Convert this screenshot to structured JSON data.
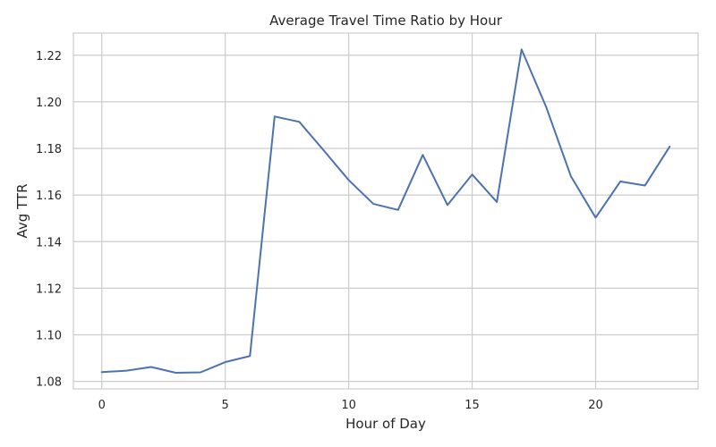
{
  "chart_data": {
    "type": "line",
    "title": "Average Travel Time Ratio by Hour",
    "xlabel": "Hour of Day",
    "ylabel": "Avg TTR",
    "xlim": [
      -1.15,
      24.15
    ],
    "ylim": [
      1.0768,
      1.2295
    ],
    "xticks": [
      0,
      5,
      10,
      15,
      20
    ],
    "yticks": [
      1.08,
      1.1,
      1.12,
      1.14,
      1.16,
      1.18,
      1.2,
      1.22
    ],
    "ytick_labels": [
      "1.08",
      "1.10",
      "1.12",
      "1.14",
      "1.16",
      "1.18",
      "1.20",
      "1.22"
    ],
    "grid": true,
    "line_color": "#4c72b0",
    "series": [
      {
        "x": [
          0,
          1,
          2,
          3,
          4,
          5,
          6,
          7,
          8,
          9,
          10,
          11,
          12,
          13,
          14,
          15,
          16,
          17,
          18,
          19,
          20,
          21,
          22,
          23
        ],
        "values": [
          1.084,
          1.0846,
          1.0862,
          1.0837,
          1.0839,
          1.0883,
          1.0909,
          1.1937,
          1.1914,
          1.179,
          1.1664,
          1.1562,
          1.1536,
          1.1772,
          1.1557,
          1.1688,
          1.157,
          1.2225,
          1.1977,
          1.168,
          1.1503,
          1.1658,
          1.1641,
          1.1808
        ]
      }
    ]
  }
}
